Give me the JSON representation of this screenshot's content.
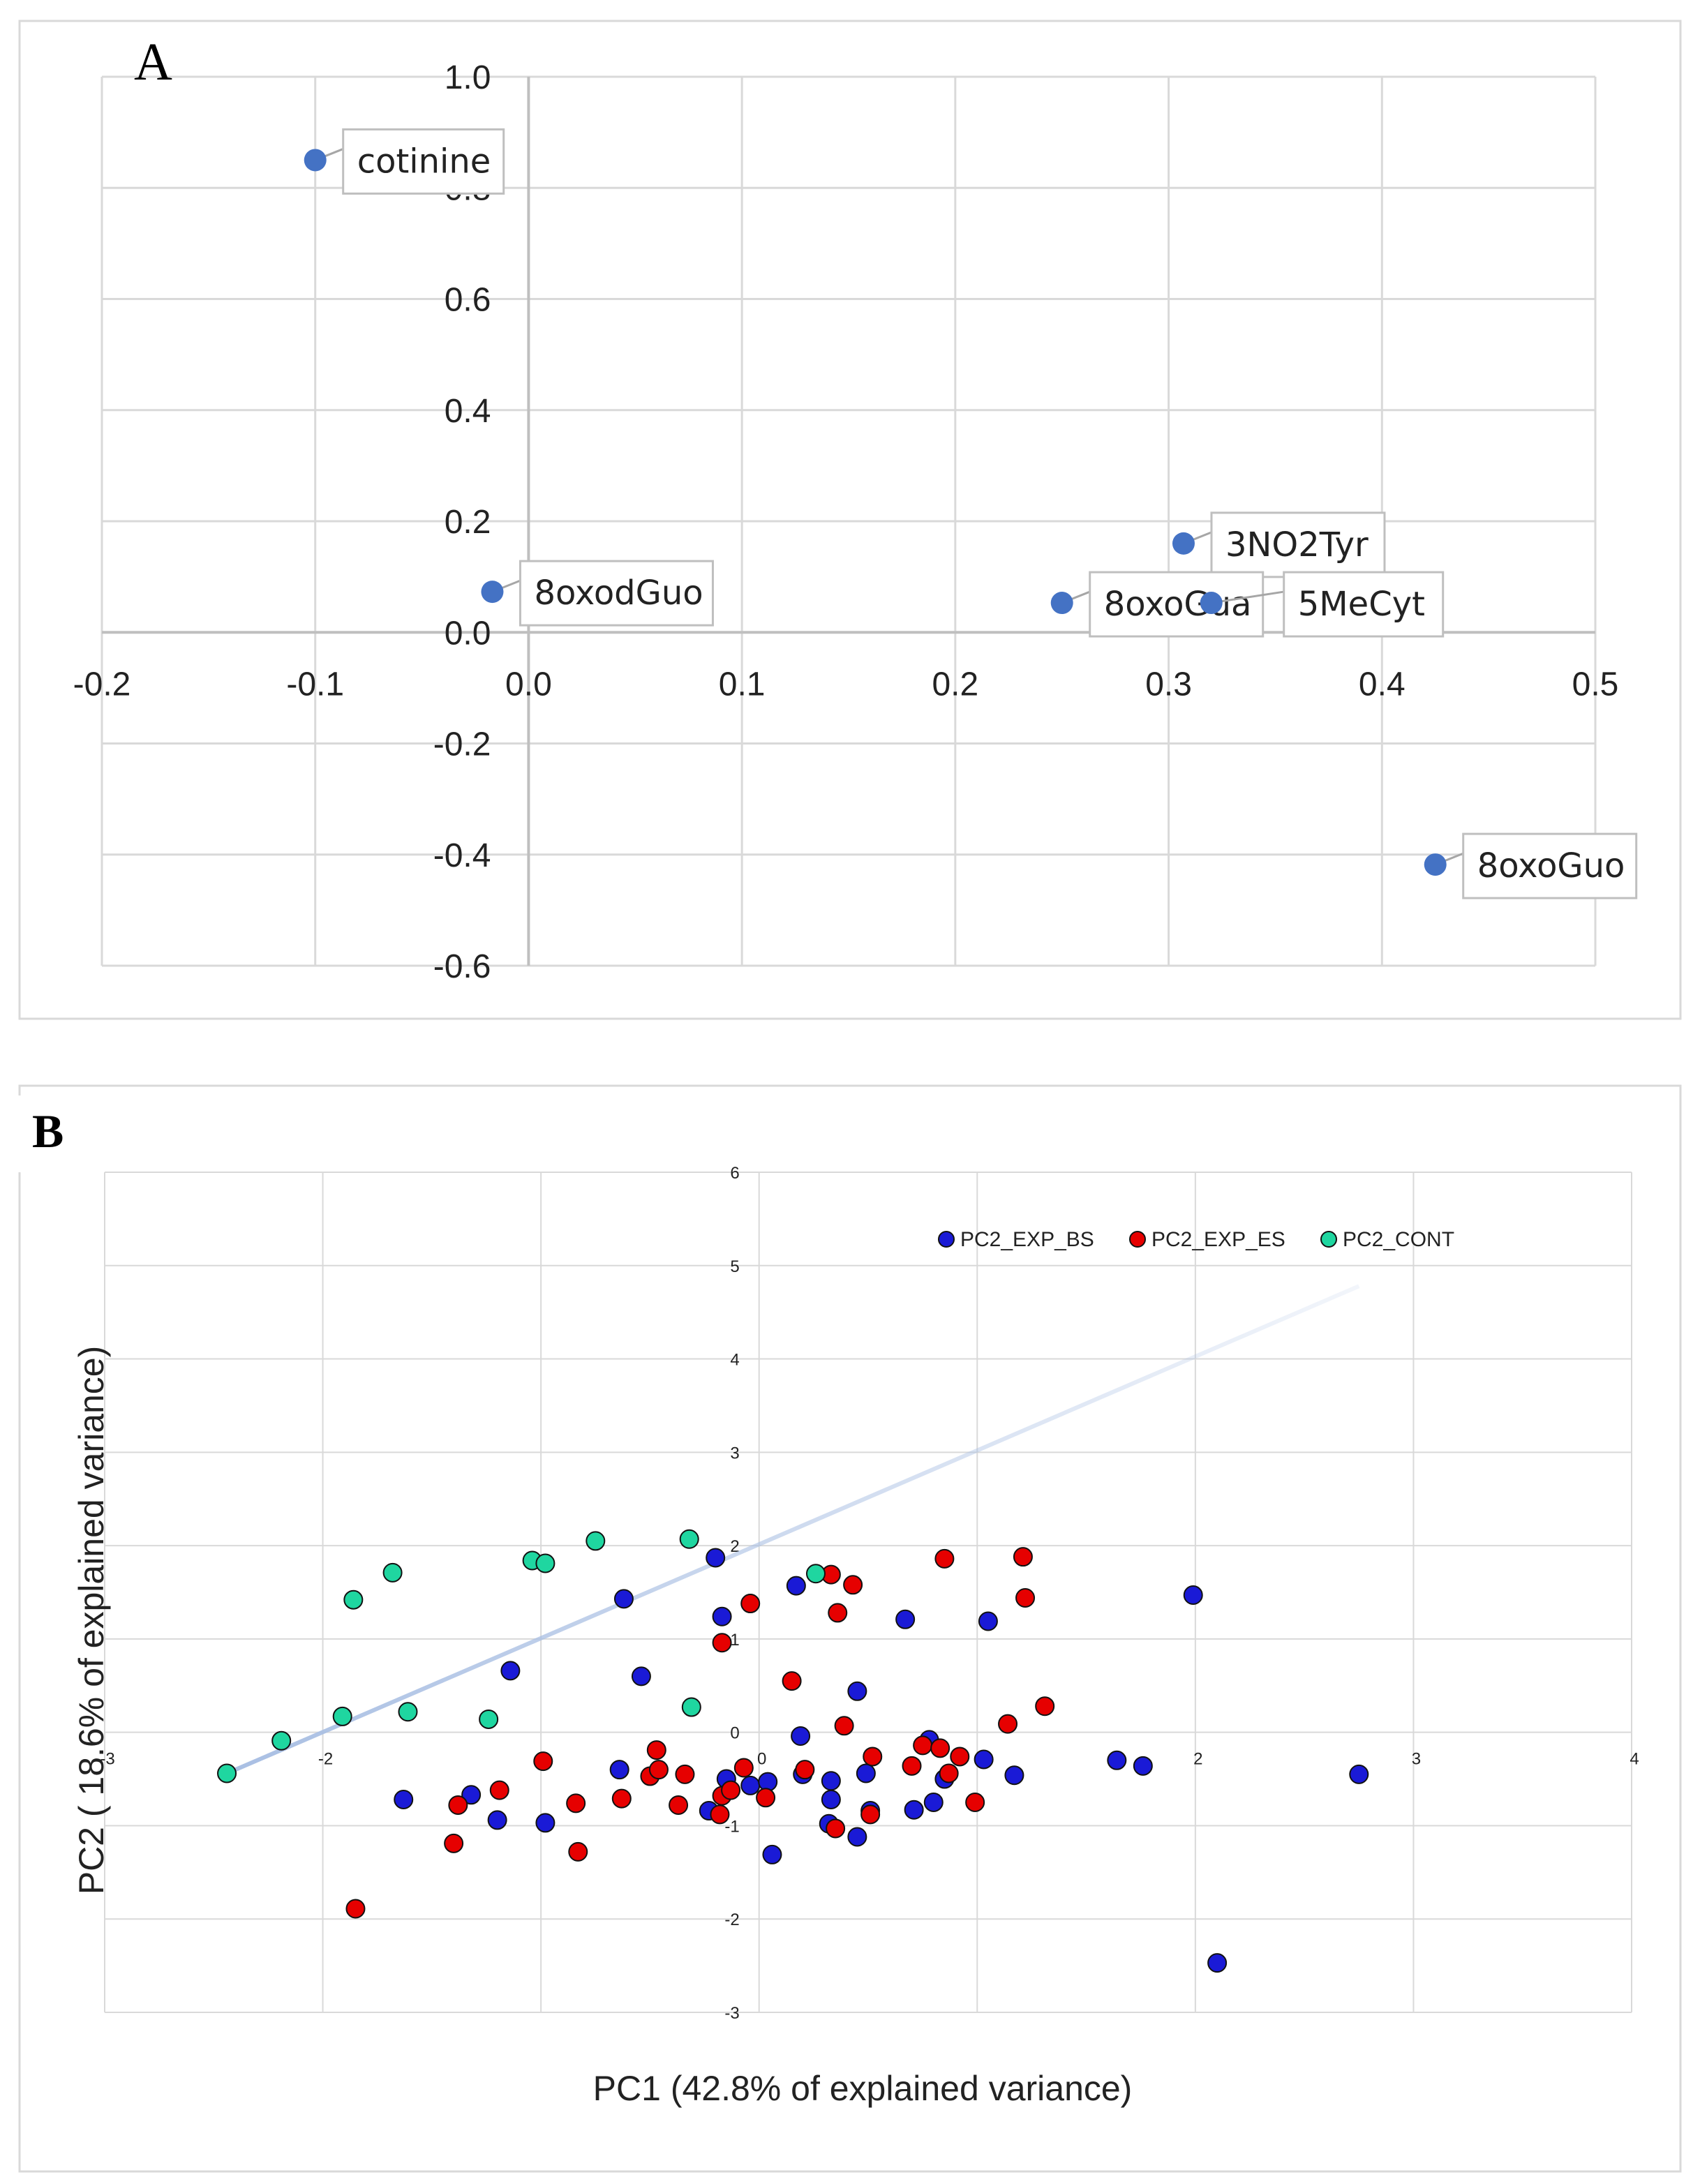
{
  "panels": {
    "a_letter": "A",
    "b_letter": "B"
  },
  "colors": {
    "panel_a_point": "#4472C4",
    "bs": "#1a1ad6",
    "es": "#e60000",
    "cont": "#1fd6a0",
    "trend": "#b4c7e7",
    "grid": "#d9d9d9",
    "axis_a": "#bfbfbf"
  },
  "chart_data": [
    {
      "type": "scatter",
      "title": "",
      "xlabel": "",
      "ylabel": "",
      "xlim": [
        -0.2,
        0.5
      ],
      "ylim": [
        -0.6,
        1.0
      ],
      "xticks": [
        "-0.2",
        "-0.1",
        "0.0",
        "0.1",
        "0.2",
        "0.3",
        "0.4",
        "0.5"
      ],
      "yticks": [
        "1.0",
        "0.8",
        "0.6",
        "0.4",
        "0.2",
        "0.0",
        "-0.2",
        "-0.4",
        "-0.6"
      ],
      "grid": true,
      "points": [
        {
          "label": "cotinine",
          "x": -0.1,
          "y": 0.85
        },
        {
          "label": "8oxodGuo",
          "x": -0.017,
          "y": 0.073
        },
        {
          "label": "3NO2Tyr",
          "x": 0.307,
          "y": 0.16
        },
        {
          "label": "8oxoGua",
          "x": 0.25,
          "y": 0.053
        },
        {
          "label": "5MeCyt",
          "x": 0.32,
          "y": 0.053
        },
        {
          "label": "8oxoGuo",
          "x": 0.425,
          "y": -0.418
        }
      ]
    },
    {
      "type": "scatter",
      "title": "",
      "xlabel": "PC1 (42.8% of explained variance)",
      "ylabel": "PC2 ( 18.6% of explained variance)",
      "xlim": [
        -3,
        4
      ],
      "ylim": [
        -3,
        6
      ],
      "xticks": [
        "-3",
        "-2",
        "-1",
        "0",
        "1",
        "2",
        "3",
        "4"
      ],
      "yticks": [
        "6",
        "5",
        "4",
        "3",
        "2",
        "1",
        "0",
        "-1",
        "-2",
        "-3"
      ],
      "grid": true,
      "legend": "top-right",
      "trendline": {
        "x1": -2.44,
        "y1": -0.44,
        "x2": 2.75,
        "y2": 4.78
      },
      "series": [
        {
          "name": "PC2_EXP_BS",
          "points": [
            [
              -1.63,
              -0.72
            ],
            [
              -1.32,
              -0.67
            ],
            [
              -1.2,
              -0.94
            ],
            [
              -1.14,
              0.66
            ],
            [
              -0.98,
              -0.97
            ],
            [
              -0.64,
              -0.4
            ],
            [
              -0.62,
              1.43
            ],
            [
              -0.54,
              0.6
            ],
            [
              -0.23,
              -0.84
            ],
            [
              -0.2,
              1.87
            ],
            [
              -0.17,
              1.24
            ],
            [
              -0.15,
              -0.5
            ],
            [
              -0.04,
              -0.57
            ],
            [
              0.04,
              -0.53
            ],
            [
              0.06,
              -1.31
            ],
            [
              0.17,
              1.57
            ],
            [
              0.19,
              -0.04
            ],
            [
              0.2,
              -0.45
            ],
            [
              0.32,
              -0.98
            ],
            [
              0.33,
              -0.52
            ],
            [
              0.33,
              -0.72
            ],
            [
              0.45,
              -1.12
            ],
            [
              0.45,
              0.44
            ],
            [
              0.49,
              -0.44
            ],
            [
              0.51,
              -0.84
            ],
            [
              0.67,
              1.21
            ],
            [
              0.71,
              -0.83
            ],
            [
              0.78,
              -0.08
            ],
            [
              0.8,
              -0.75
            ],
            [
              0.85,
              -0.5
            ],
            [
              1.03,
              -0.29
            ],
            [
              1.05,
              1.19
            ],
            [
              1.17,
              -0.46
            ],
            [
              1.64,
              -0.3
            ],
            [
              1.76,
              -0.36
            ],
            [
              1.99,
              1.47
            ],
            [
              2.1,
              -2.47
            ],
            [
              2.75,
              -0.45
            ]
          ]
        },
        {
          "name": "PC2_EXP_ES",
          "points": [
            [
              -1.85,
              -1.89
            ],
            [
              -1.38,
              -0.78
            ],
            [
              -1.4,
              -1.19
            ],
            [
              -1.19,
              -0.62
            ],
            [
              -0.99,
              -0.31
            ],
            [
              -0.84,
              -0.76
            ],
            [
              -0.83,
              -1.28
            ],
            [
              -0.63,
              -0.71
            ],
            [
              -0.5,
              -0.47
            ],
            [
              -0.47,
              -0.19
            ],
            [
              -0.46,
              -0.4
            ],
            [
              -0.37,
              -0.78
            ],
            [
              -0.34,
              -0.45
            ],
            [
              -0.18,
              -0.88
            ],
            [
              -0.17,
              -0.68
            ],
            [
              -0.17,
              0.96
            ],
            [
              -0.13,
              -0.62
            ],
            [
              -0.07,
              -0.38
            ],
            [
              -0.04,
              1.38
            ],
            [
              0.03,
              -0.7
            ],
            [
              0.15,
              0.55
            ],
            [
              0.21,
              -0.4
            ],
            [
              0.33,
              1.69
            ],
            [
              0.35,
              -1.03
            ],
            [
              0.36,
              1.28
            ],
            [
              0.39,
              0.07
            ],
            [
              0.43,
              1.58
            ],
            [
              0.51,
              -0.88
            ],
            [
              0.52,
              -0.26
            ],
            [
              0.7,
              -0.36
            ],
            [
              0.75,
              -0.14
            ],
            [
              0.83,
              -0.17
            ],
            [
              0.85,
              1.86
            ],
            [
              0.87,
              -0.44
            ],
            [
              0.92,
              -0.26
            ],
            [
              0.99,
              -0.75
            ],
            [
              1.14,
              0.09
            ],
            [
              1.21,
              1.88
            ],
            [
              1.22,
              1.44
            ],
            [
              1.31,
              0.28
            ]
          ]
        },
        {
          "name": "PC2_CONT",
          "points": [
            [
              -2.44,
              -0.44
            ],
            [
              -2.19,
              -0.09
            ],
            [
              -1.91,
              0.17
            ],
            [
              -1.86,
              1.42
            ],
            [
              -1.68,
              1.71
            ],
            [
              -1.61,
              0.22
            ],
            [
              -1.24,
              0.14
            ],
            [
              -1.04,
              1.84
            ],
            [
              -0.98,
              1.81
            ],
            [
              -0.75,
              2.05
            ],
            [
              -0.32,
              2.07
            ],
            [
              -0.31,
              0.27
            ],
            [
              0.26,
              1.7
            ]
          ]
        }
      ]
    }
  ]
}
